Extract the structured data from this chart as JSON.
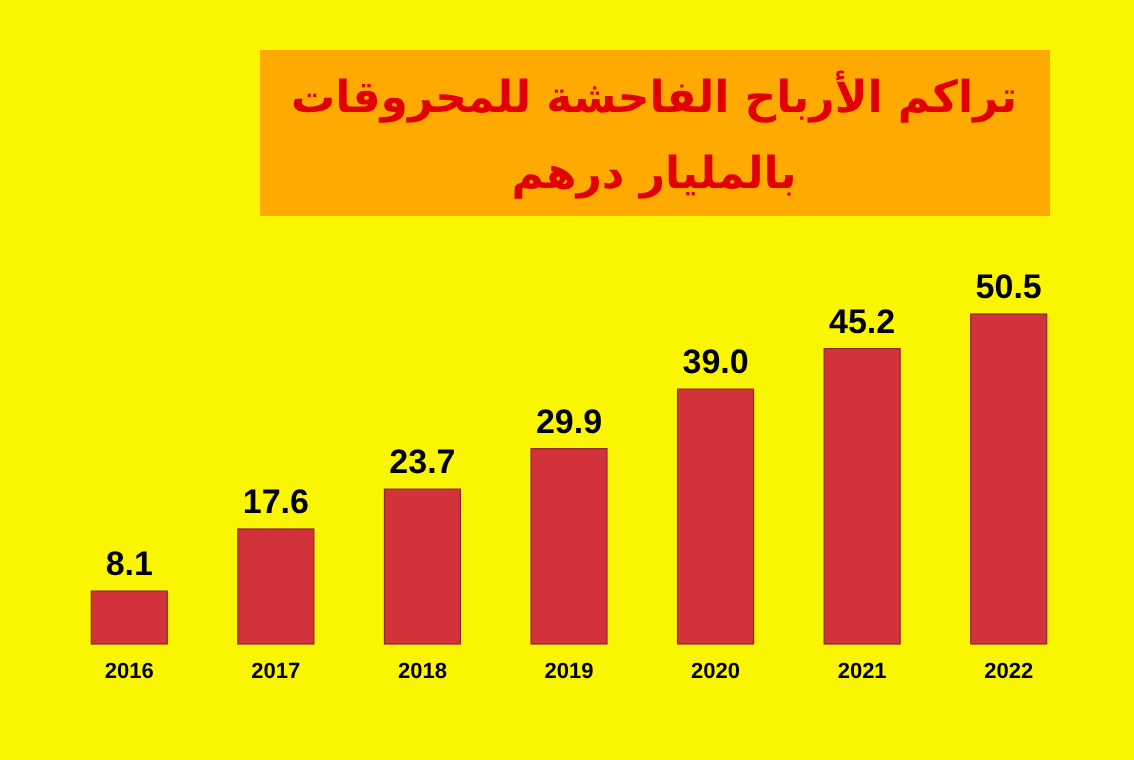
{
  "chart_data": {
    "type": "bar",
    "title": "تراكم الأرباح الفاحشة للمحروقات",
    "subtitle": "بالمليار درهم",
    "categories": [
      "2016",
      "2017",
      "2018",
      "2019",
      "2020",
      "2021",
      "2022"
    ],
    "values": [
      8.1,
      17.6,
      23.7,
      29.9,
      39.0,
      45.2,
      50.5
    ],
    "value_labels": [
      "8.1",
      "17.6",
      "23.7",
      "29.9",
      "39.0",
      "45.2",
      "50.5"
    ],
    "color": "#d2323a",
    "tick_labels": "x"
  }
}
